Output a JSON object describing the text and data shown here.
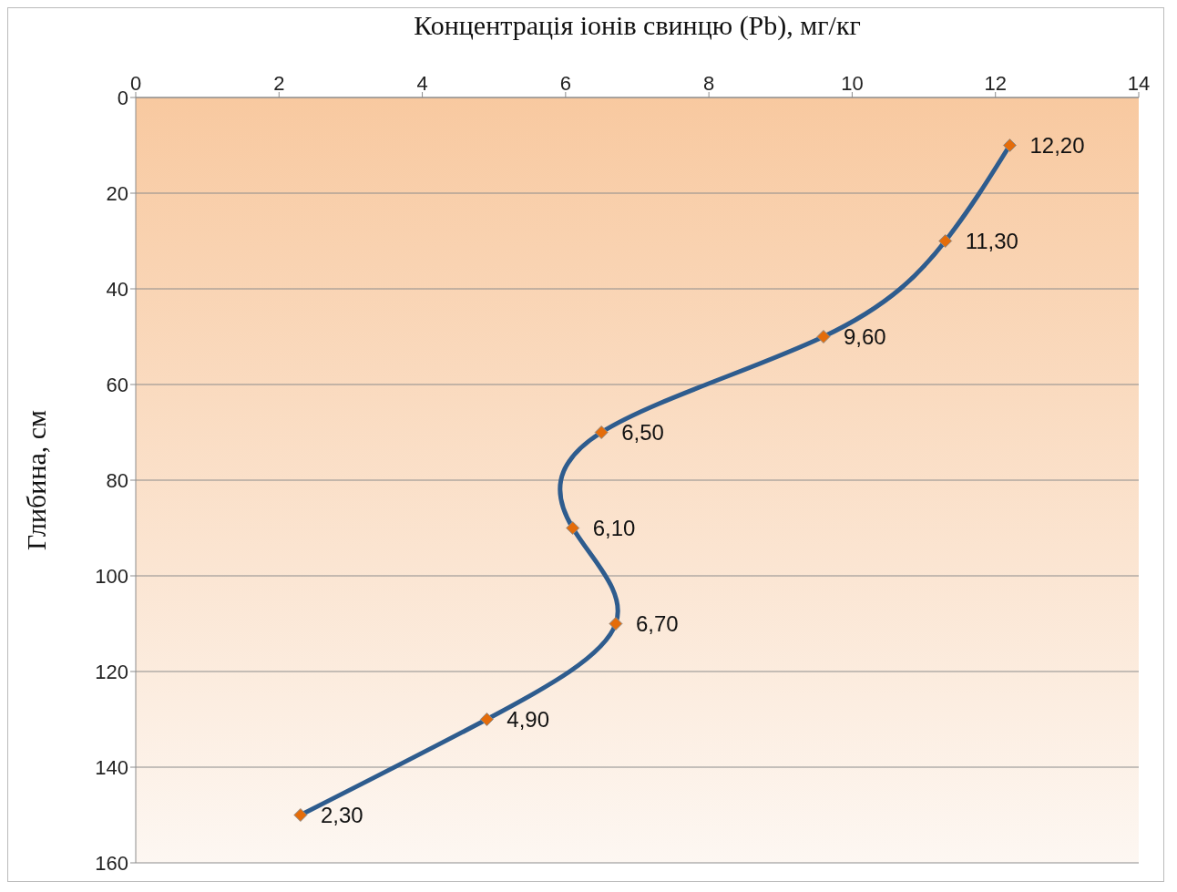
{
  "chart_data": {
    "type": "line",
    "orientation": "horizontal",
    "xlabel": "Концентрація іонів свинцю (Pb), мг/кг",
    "ylabel": "Глибина, см",
    "xlim": [
      0,
      14
    ],
    "xticks": [
      0,
      2,
      4,
      6,
      8,
      10,
      12,
      14
    ],
    "ylim": [
      160,
      0
    ],
    "yticks": [
      0,
      20,
      40,
      60,
      80,
      100,
      120,
      140,
      160
    ],
    "grid": "y",
    "marker": "diamond",
    "line_style": "solid",
    "legend": false,
    "series": [
      {
        "color": "#2e5c8e",
        "colors": [
          "#e46c0a",
          "#e46c0a",
          "#e46c0a",
          "#e46c0a",
          "#e46c0a",
          "#e46c0a",
          "#e46c0a",
          "#e46c0a"
        ],
        "x": [
          10,
          30,
          50,
          70,
          90,
          110,
          130,
          150
        ],
        "values": [
          12.2,
          11.3,
          9.6,
          6.5,
          6.1,
          6.7,
          4.9,
          2.3
        ],
        "value_labels": [
          "12,20",
          "11,30",
          "9,60",
          "6,50",
          "6,10",
          "6,70",
          "4,90",
          "2,30"
        ]
      }
    ]
  }
}
